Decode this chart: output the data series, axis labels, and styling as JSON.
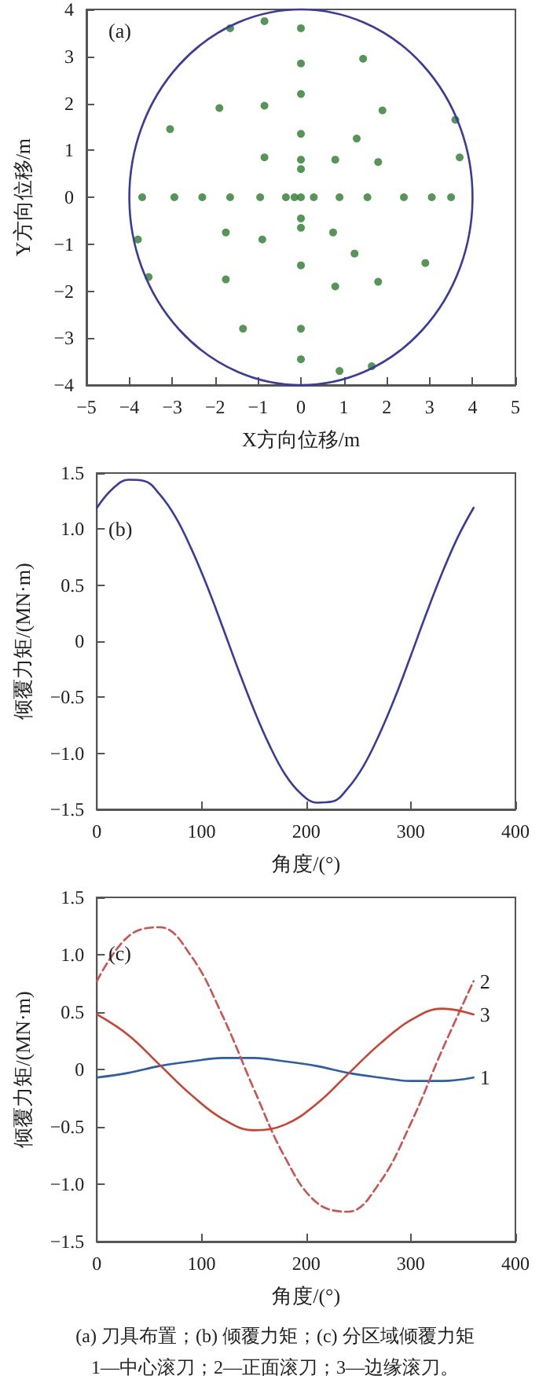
{
  "chart_data": [
    {
      "type": "scatter",
      "title": "(a)",
      "xlabel": "X方向位移/m",
      "ylabel": "Y方向位移/m",
      "marker": "circle",
      "grid": false,
      "xlim": [
        -5,
        5
      ],
      "ylim": [
        -4,
        4
      ],
      "xticks": [
        {
          "value": -5,
          "label": "−5"
        },
        {
          "value": -4,
          "label": "−4"
        },
        {
          "value": -3,
          "label": "−3"
        },
        {
          "value": -2,
          "label": "−2"
        },
        {
          "value": -1,
          "label": "−1"
        },
        0,
        1,
        2,
        3,
        4,
        5
      ],
      "yticks": [
        {
          "value": -4,
          "label": "−4"
        },
        {
          "value": -3,
          "label": "−3"
        },
        {
          "value": -2,
          "label": "−2"
        },
        {
          "value": -1,
          "label": "−1"
        },
        0,
        1,
        2,
        3,
        4
      ],
      "series": [
        {
          "color": "#2a7a2a",
          "x": [
            -3.7,
            -2.95,
            -2.3,
            -1.65,
            -0.95,
            -0.35,
            -0.15,
            0,
            0.3,
            0.9,
            1.55,
            2.4,
            3.05,
            3.5,
            0,
            0,
            0,
            0,
            0,
            0,
            0,
            0,
            0,
            0,
            0,
            -1.65,
            -0.85,
            1.45,
            -1.9,
            -0.85,
            1.9,
            -3.05,
            1.3,
            3.6,
            -0.85,
            0.8,
            1.8,
            3.7,
            -3.8,
            -1.75,
            -0.9,
            0.75,
            1.25,
            2.9,
            -3.55,
            -1.75,
            0.8,
            1.8,
            -1.35,
            0.9,
            1.65
          ],
          "values": [
            0,
            0,
            0,
            0,
            0,
            0,
            0,
            0,
            0,
            0,
            0,
            0,
            0,
            0,
            3.6,
            2.85,
            2.2,
            1.35,
            0.8,
            0.6,
            -0.45,
            -0.65,
            -1.45,
            -2.8,
            -3.45,
            3.6,
            3.75,
            2.95,
            1.9,
            1.95,
            1.85,
            1.45,
            1.25,
            1.65,
            0.85,
            0.8,
            0.75,
            0.85,
            -0.9,
            -0.75,
            -0.9,
            -0.75,
            -1.2,
            -1.4,
            -1.7,
            -1.75,
            -1.9,
            -1.8,
            -2.8,
            -3.7,
            -3.6
          ]
        }
      ]
    },
    {
      "type": "line",
      "title": "(b)",
      "xlabel": "角度/(°)",
      "ylabel": "倾覆力矩/(MN·m)",
      "grid": false,
      "xlim": [
        0,
        400
      ],
      "ylim": [
        -1.5,
        1.5
      ],
      "xticks": [
        0,
        100,
        200,
        300,
        400
      ],
      "yticks": [
        {
          "value": -1.5,
          "label": "−1.5"
        },
        {
          "value": -1,
          "label": "−1.0"
        },
        {
          "value": -0.5,
          "label": "−0.5"
        },
        0,
        0.5,
        {
          "value": 1,
          "label": "1.0"
        },
        1.5
      ],
      "x": [
        0,
        15,
        30,
        45,
        60,
        75,
        90,
        105,
        120,
        135,
        150,
        165,
        180,
        195,
        210,
        225,
        240,
        255,
        270,
        285,
        300,
        315,
        330,
        345,
        360
      ],
      "series": [
        {
          "color": "#3a3aa0",
          "values": [
            1.19,
            1.36,
            1.44,
            1.43,
            1.31,
            1.11,
            0.83,
            0.5,
            0.13,
            -0.25,
            -0.61,
            -0.93,
            -1.19,
            -1.36,
            -1.44,
            -1.43,
            -1.31,
            -1.11,
            -0.83,
            -0.5,
            -0.13,
            0.25,
            0.61,
            0.93,
            1.19
          ]
        }
      ]
    },
    {
      "type": "line",
      "title": "(c)",
      "xlabel": "角度/(°)",
      "ylabel": "倾覆力矩/(MN·m)",
      "grid": false,
      "xlim": [
        0,
        400
      ],
      "ylim": [
        -1.5,
        1.5
      ],
      "xticks": [
        0,
        100,
        200,
        300,
        400
      ],
      "yticks": [
        {
          "value": -1.5,
          "label": "−1.5"
        },
        {
          "value": -1,
          "label": "−1.0"
        },
        {
          "value": -0.5,
          "label": "−0.5"
        },
        0,
        0.5,
        {
          "value": 1,
          "label": "1.0"
        },
        1.5
      ],
      "x": [
        0,
        30,
        60,
        90,
        120,
        150,
        180,
        210,
        240,
        270,
        300,
        330,
        360
      ],
      "annotations": [
        "(a) 刀具布置；(b) 倾覆力矩；(c) 分区域倾覆力矩",
        "1—中心滚刀；2—正面滚刀；3—边缘滚刀。"
      ],
      "series": [
        {
          "name": "1",
          "color": "#2b5ea8",
          "values": [
            -0.07,
            -0.03,
            0.03,
            0.07,
            0.1,
            0.1,
            0.07,
            0.03,
            -0.03,
            -0.07,
            -0.1,
            -0.1,
            -0.07
          ]
        },
        {
          "name": "2",
          "color": "#d05050",
          "line_style": "dashed",
          "values": [
            0.77,
            1.16,
            1.24,
            0.99,
            0.47,
            -0.17,
            -0.77,
            -1.16,
            -1.24,
            -0.99,
            -0.47,
            0.17,
            0.77
          ]
        },
        {
          "name": "3",
          "color": "#d0402f",
          "values": [
            0.48,
            0.3,
            0.04,
            -0.22,
            -0.43,
            -0.53,
            -0.48,
            -0.3,
            -0.04,
            0.22,
            0.43,
            0.53,
            0.48
          ]
        }
      ]
    }
  ]
}
